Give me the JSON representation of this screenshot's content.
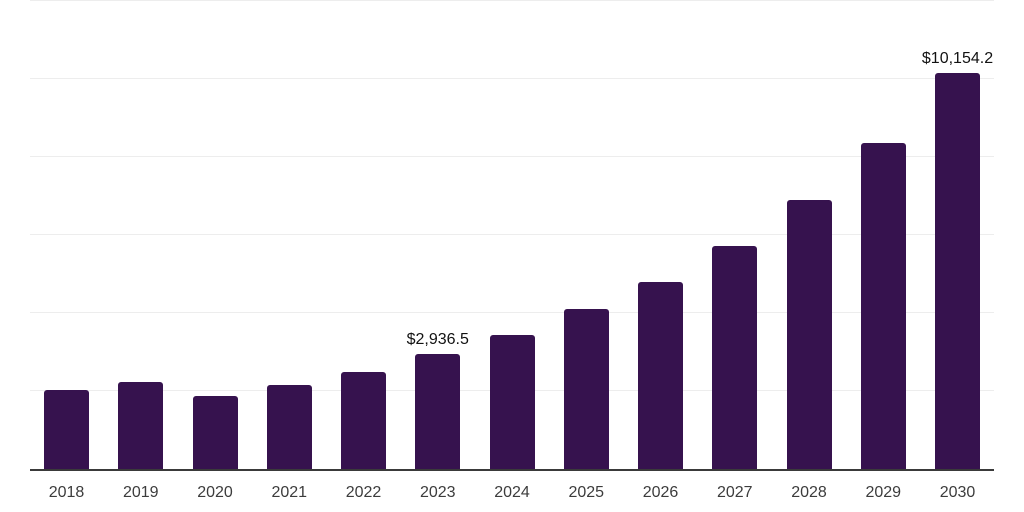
{
  "chart": {
    "background_color": "#ffffff",
    "bar_color": "#36124E",
    "gridline_color": "#ededed",
    "axis_line_color": "#3a3a3a",
    "tick_label_color": "#3c3c3c",
    "data_label_color": "#121212"
  },
  "chart_data": {
    "type": "bar",
    "title": "",
    "xlabel": "",
    "ylabel": "",
    "categories": [
      "2018",
      "2019",
      "2020",
      "2021",
      "2022",
      "2023",
      "2024",
      "2025",
      "2026",
      "2027",
      "2028",
      "2029",
      "2030"
    ],
    "values": [
      2025,
      2240,
      1870,
      2155,
      2480,
      2936.5,
      3430,
      4095,
      4790,
      5725,
      6895,
      8365,
      10154.2
    ],
    "data_labels": {
      "2023": "$2,936.5",
      "2030": "$10,154.2"
    },
    "ylim": [
      0,
      12000
    ],
    "y_gridline_step": 2000,
    "grid": true,
    "legend": false,
    "y_axis_tick_labels_visible": false
  }
}
